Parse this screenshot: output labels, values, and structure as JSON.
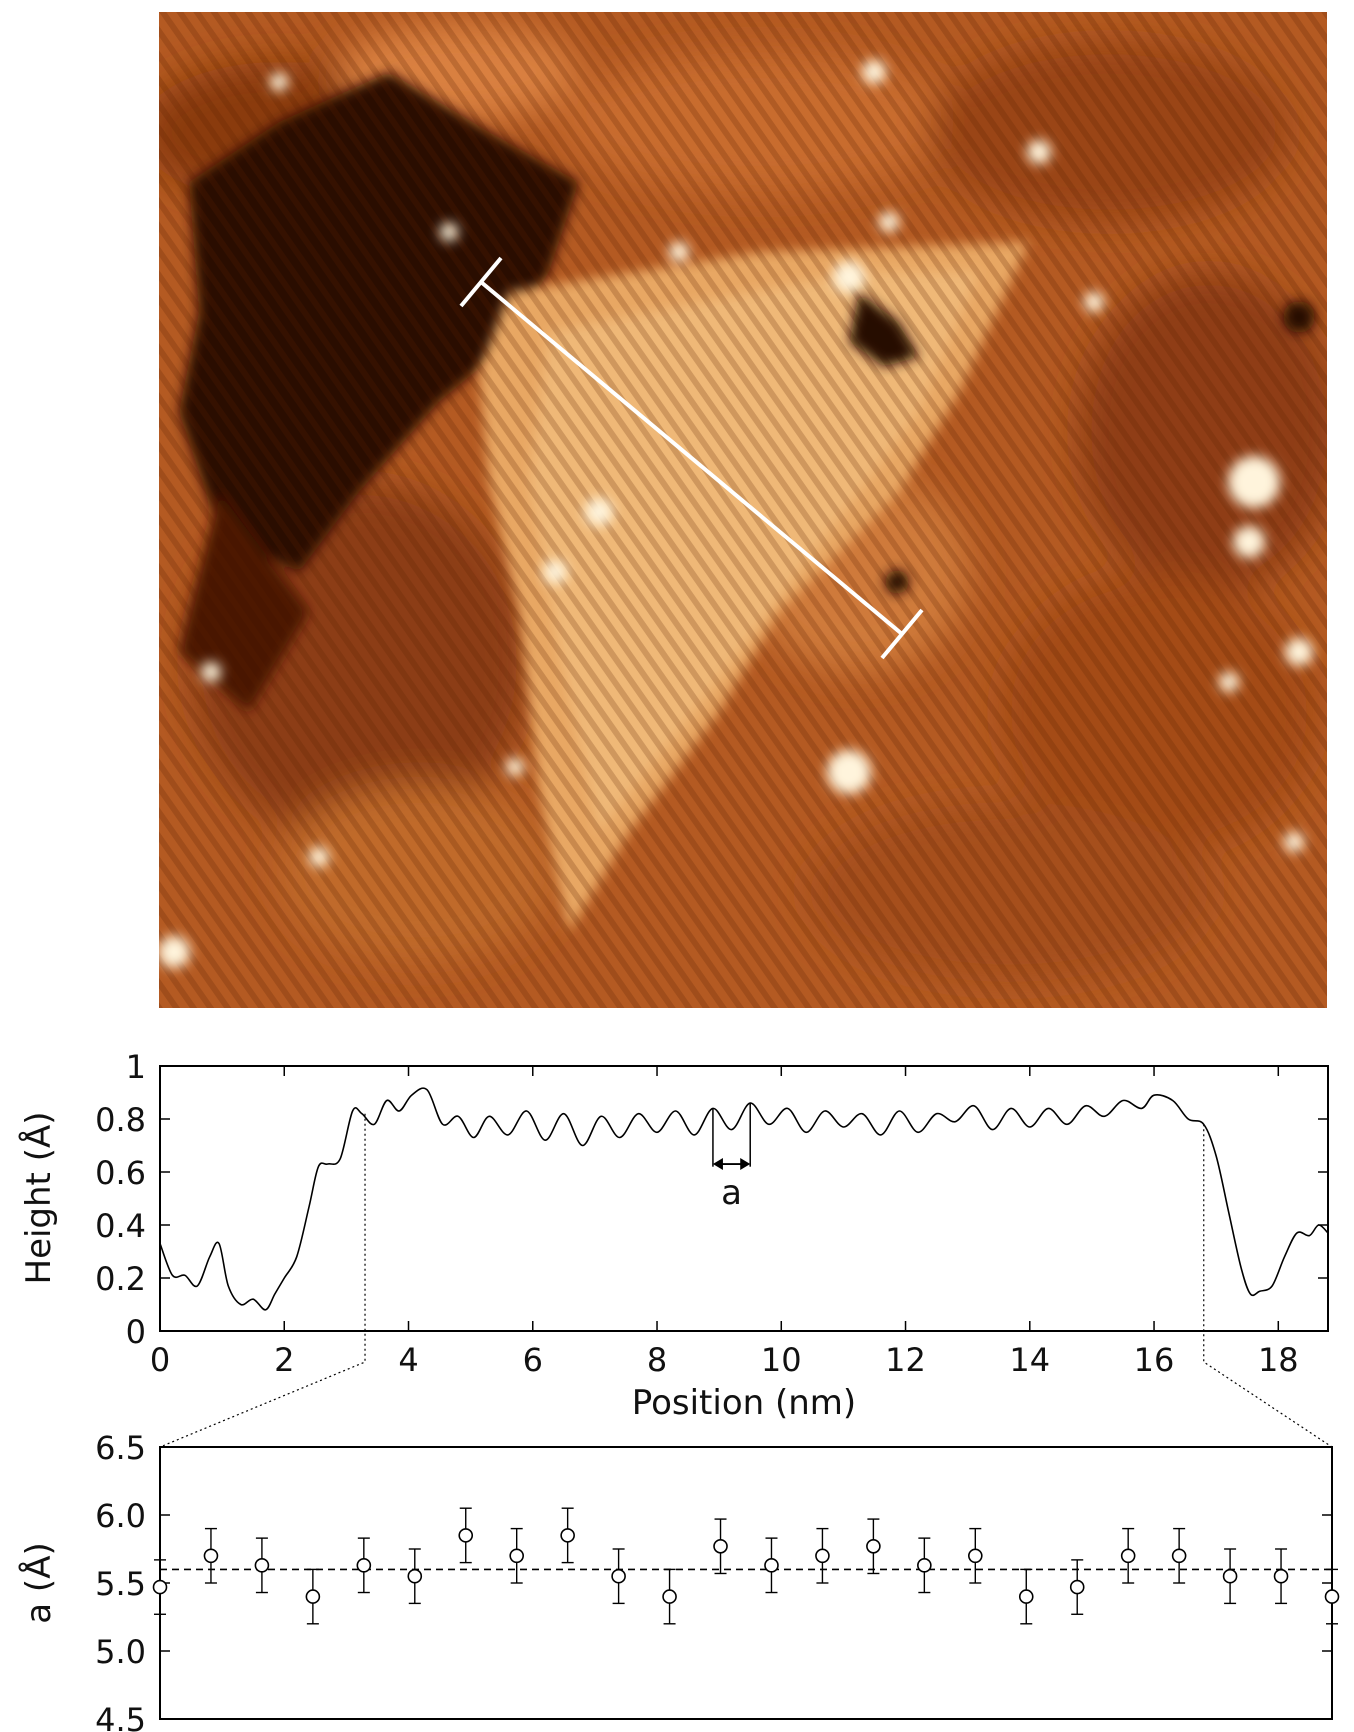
{
  "stm_image": {
    "description_colors": {
      "dark": "#1a0500",
      "mid": "#b8561e",
      "light": "#f6c98a",
      "bright": "#ffffff"
    }
  },
  "chart_data": [
    {
      "type": "line",
      "xlabel": "Position (nm)",
      "ylabel": "Height (Å)",
      "xlim": [
        0,
        18.8
      ],
      "ylim": [
        0,
        1
      ],
      "xticks": [
        "0",
        "2",
        "4",
        "6",
        "8",
        "10",
        "12",
        "14",
        "16",
        "18"
      ],
      "yticks": [
        "0",
        "0.2",
        "0.4",
        "0.6",
        "0.8",
        "1"
      ],
      "annotation": {
        "label": "a",
        "x_start": 8.9,
        "x_end": 9.5
      },
      "zoom_guides": [
        3.3,
        16.8
      ],
      "series": [
        {
          "x": [
            0,
            0.2,
            0.4,
            0.6,
            0.8,
            0.95,
            1.1,
            1.3,
            1.5,
            1.7,
            1.85,
            2.0,
            2.2,
            2.4,
            2.55,
            2.7,
            2.9,
            3.1,
            3.25,
            3.45,
            3.65,
            3.85,
            4.05,
            4.3,
            4.55,
            4.8,
            5.05,
            5.3,
            5.6,
            5.9,
            6.2,
            6.5,
            6.8,
            7.1,
            7.4,
            7.7,
            8.0,
            8.3,
            8.6,
            8.9,
            9.2,
            9.5,
            9.8,
            10.1,
            10.4,
            10.7,
            11.0,
            11.3,
            11.6,
            11.9,
            12.2,
            12.5,
            12.8,
            13.1,
            13.4,
            13.7,
            14.0,
            14.3,
            14.6,
            14.9,
            15.2,
            15.5,
            15.8,
            16.0,
            16.3,
            16.55,
            16.8,
            17.0,
            17.2,
            17.4,
            17.55,
            17.7,
            17.9,
            18.1,
            18.3,
            18.5,
            18.65,
            18.8
          ],
          "y": [
            0.33,
            0.21,
            0.21,
            0.17,
            0.28,
            0.33,
            0.17,
            0.1,
            0.12,
            0.08,
            0.14,
            0.2,
            0.28,
            0.47,
            0.62,
            0.63,
            0.65,
            0.83,
            0.82,
            0.78,
            0.87,
            0.83,
            0.89,
            0.91,
            0.78,
            0.81,
            0.73,
            0.81,
            0.74,
            0.83,
            0.72,
            0.82,
            0.7,
            0.81,
            0.73,
            0.82,
            0.75,
            0.83,
            0.74,
            0.84,
            0.76,
            0.86,
            0.78,
            0.84,
            0.75,
            0.83,
            0.77,
            0.82,
            0.74,
            0.83,
            0.75,
            0.82,
            0.79,
            0.85,
            0.76,
            0.84,
            0.77,
            0.84,
            0.78,
            0.85,
            0.81,
            0.87,
            0.84,
            0.89,
            0.87,
            0.8,
            0.78,
            0.66,
            0.45,
            0.24,
            0.14,
            0.15,
            0.17,
            0.28,
            0.37,
            0.36,
            0.4,
            0.37
          ]
        }
      ]
    },
    {
      "type": "scatter",
      "xlabel": "",
      "ylabel": "a (Å)",
      "ylim": [
        4.5,
        6.5
      ],
      "yticks": [
        "6.5",
        "6.0",
        "5.5",
        "5.0",
        "4.5"
      ],
      "reference_line": 5.6,
      "error_bar": 0.2,
      "series": [
        {
          "y": [
            5.47,
            5.7,
            5.63,
            5.4,
            5.63,
            5.55,
            5.85,
            5.7,
            5.85,
            5.55,
            5.4,
            5.77,
            5.63,
            5.7,
            5.77,
            5.63,
            5.7,
            5.4,
            5.47,
            5.7,
            5.7,
            5.55,
            5.55,
            5.4
          ]
        }
      ]
    }
  ]
}
